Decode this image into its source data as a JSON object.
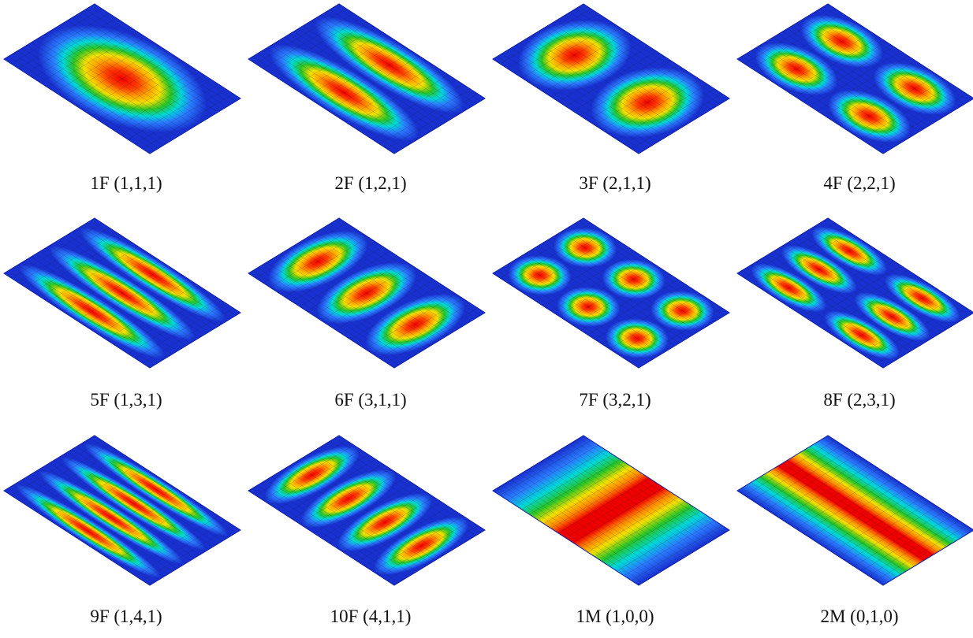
{
  "captions": [
    "1F (1,1,1)",
    "2F (1,2,1)",
    "3F (2,1,1)",
    "4F (2,2,1)",
    "5F (1,3,1)",
    "6F (3,1,1)",
    "7F (3,2,1)",
    "8F (2,3,1)",
    "9F (1,4,1)",
    "10F (4,1,1)",
    "1M (1,0,0)",
    "2M (0,1,0)"
  ]
}
